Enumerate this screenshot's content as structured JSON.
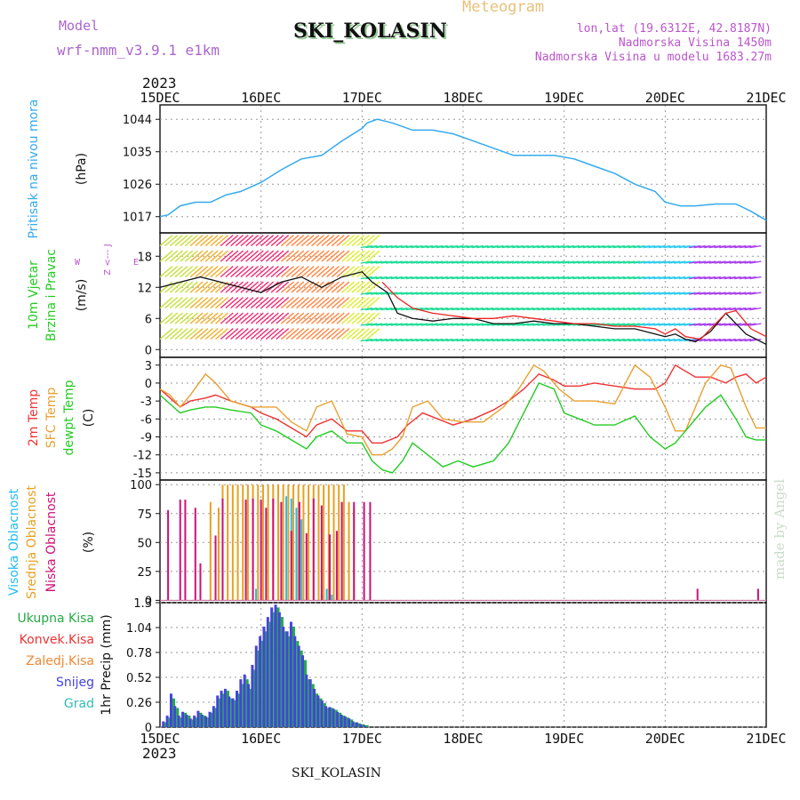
{
  "header": {
    "model_label": "Model",
    "model_name": "wrf-nmm_v3.9.1  e1km",
    "station": "SKI_KOLASIN",
    "product": "Meteogram",
    "coords": "lon,lat (19.6312E, 42.8187N)",
    "altitude": "Nadmorska Visina 1450m",
    "model_altitude": "Nadmorska Visina u modelu 1683.27m",
    "footer_station": "SKI_KOLASIN",
    "year": "2023",
    "watermark": "made by Angel"
  },
  "colors": {
    "pressure": "#33aaee",
    "t2m": "#ee3333",
    "tsfc": "#e8a030",
    "dewpoint": "#22cc22",
    "high_cloud": "#22bbee",
    "mid_cloud": "#e8a020",
    "low_cloud": "#cc1177",
    "total_precip": "#22aa44",
    "snow": "#4444dd",
    "grid": "#999999"
  },
  "chart_data": [
    {
      "type": "line",
      "panel": "pressure",
      "ylabel_lines": [
        "Pritisak na nivou mora",
        "(hPa)"
      ],
      "x_labels": [
        "15DEC",
        "16DEC",
        "17DEC",
        "18DEC",
        "19DEC",
        "20DEC",
        "21DEC"
      ],
      "yticks": [
        1017,
        1026,
        1035,
        1044
      ],
      "ylim": [
        1012.5,
        1048
      ],
      "series": [
        {
          "color_key": "pressure",
          "x": [
            0,
            0.08,
            0.2,
            0.35,
            0.5,
            0.65,
            0.8,
            1.0,
            1.2,
            1.4,
            1.6,
            1.8,
            2.0,
            2.05,
            2.15,
            2.3,
            2.5,
            2.7,
            2.9,
            3.1,
            3.3,
            3.5,
            3.7,
            3.9,
            4.1,
            4.3,
            4.5,
            4.7,
            4.9,
            5.0,
            5.15,
            5.3,
            5.5,
            5.7,
            5.85,
            6.0
          ],
          "values": [
            1017,
            1017.5,
            1020,
            1021,
            1021,
            1023,
            1024,
            1026.5,
            1030,
            1033,
            1034,
            1038,
            1041.5,
            1043,
            1044,
            1043,
            1041,
            1041,
            1040,
            1038,
            1036,
            1034,
            1034,
            1034,
            1033,
            1031,
            1029,
            1026,
            1024,
            1021,
            1020,
            1020,
            1020.5,
            1020.5,
            1018.5,
            1016
          ]
        }
      ]
    },
    {
      "type": "line",
      "panel": "wind",
      "ylabel_lines": [
        "10m Vjetar",
        "Brzina i Pravac",
        "(m/s)"
      ],
      "compass_label": "Z <--- J",
      "compass_w": "W",
      "compass_e": "E",
      "yticks": [
        0,
        6,
        12,
        18
      ],
      "ylim": [
        -1.5,
        22.5
      ],
      "series": [
        {
          "name": "speed",
          "color": "#111111",
          "x": [
            0,
            0.2,
            0.4,
            0.6,
            0.8,
            1.0,
            1.2,
            1.4,
            1.6,
            1.8,
            2.0,
            2.1,
            2.25,
            2.35,
            2.5,
            2.7,
            2.9,
            3.1,
            3.3,
            3.5,
            3.7,
            3.9,
            4.1,
            4.3,
            4.5,
            4.7,
            4.9,
            5.0,
            5.1,
            5.2,
            5.3,
            5.45,
            5.6,
            5.7,
            5.8,
            5.9,
            6.0
          ],
          "values": [
            12,
            13,
            14,
            13,
            12,
            11,
            13,
            14,
            12,
            14,
            15,
            13,
            11,
            7,
            6,
            5.5,
            6,
            6,
            5,
            5,
            5.5,
            5,
            5,
            4.5,
            4,
            4,
            3,
            2.5,
            3,
            2,
            1.5,
            3.5,
            7,
            5,
            3,
            2,
            1
          ]
        },
        {
          "name": "gust",
          "color": "#ee2222",
          "x": [
            2.2,
            2.35,
            2.5,
            2.7,
            2.9,
            3.1,
            3.3,
            3.5,
            3.7,
            3.9,
            4.1,
            4.3,
            4.5,
            4.7,
            4.9,
            5.0,
            5.1,
            5.2,
            5.35,
            5.5,
            5.6,
            5.7,
            5.85,
            6.0
          ],
          "values": [
            13,
            10,
            8,
            7,
            6.5,
            6,
            6,
            6.5,
            6,
            5.5,
            5,
            5,
            4.5,
            4.5,
            4,
            3,
            4,
            2.5,
            2,
            5,
            7,
            7.5,
            4,
            2.5
          ]
        }
      ]
    },
    {
      "type": "line",
      "panel": "temperature",
      "ylabel_lines": [
        "2m Temp",
        "SFC Temp",
        "dewpt Temp",
        "(C)"
      ],
      "yticks": [
        -15,
        -12,
        -9,
        -6,
        -3,
        0,
        3
      ],
      "ylim": [
        -16.2,
        4.3
      ],
      "series": [
        {
          "name": "2m Temp",
          "color_key": "t2m",
          "x": [
            0,
            0.1,
            0.2,
            0.3,
            0.45,
            0.55,
            0.7,
            0.9,
            1.0,
            1.15,
            1.3,
            1.45,
            1.55,
            1.7,
            1.85,
            2.0,
            2.1,
            2.2,
            2.35,
            2.45,
            2.6,
            2.75,
            2.9,
            3.1,
            3.3,
            3.45,
            3.6,
            3.75,
            3.9,
            4.0,
            4.15,
            4.3,
            4.5,
            4.7,
            4.9,
            5.0,
            5.1,
            5.3,
            5.45,
            5.6,
            5.7,
            5.8,
            5.9,
            6.0
          ],
          "values": [
            -1,
            -2.5,
            -4,
            -3,
            -2.5,
            -2,
            -3,
            -4,
            -5,
            -6,
            -7.5,
            -9,
            -7,
            -6,
            -8,
            -8,
            -10,
            -10,
            -9,
            -7,
            -5,
            -6,
            -7,
            -6,
            -4.5,
            -3,
            -1,
            1.5,
            0.5,
            -0.5,
            -0.5,
            0,
            -0.5,
            -1,
            -1,
            0,
            3,
            1,
            1,
            0,
            1,
            1.5,
            0,
            1
          ]
        },
        {
          "name": "SFC Temp",
          "color_key": "tsfc",
          "x": [
            0,
            0.1,
            0.2,
            0.3,
            0.45,
            0.55,
            0.7,
            0.9,
            1.0,
            1.15,
            1.3,
            1.45,
            1.55,
            1.7,
            1.85,
            2.0,
            2.1,
            2.2,
            2.3,
            2.4,
            2.5,
            2.65,
            2.8,
            3.0,
            3.2,
            3.4,
            3.55,
            3.7,
            3.8,
            3.95,
            4.1,
            4.3,
            4.5,
            4.7,
            4.85,
            5.0,
            5.1,
            5.2,
            5.4,
            5.55,
            5.65,
            5.8,
            5.9,
            6.0
          ],
          "values": [
            -1,
            -2,
            -4,
            -2,
            1.5,
            0,
            -3,
            -4,
            -4,
            -4,
            -6.5,
            -8,
            -4,
            -3,
            -8.5,
            -9,
            -12,
            -12,
            -11,
            -9,
            -4,
            -3,
            -6,
            -6.5,
            -6.5,
            -4,
            -1,
            3,
            2,
            -1,
            -3,
            -3,
            -3.5,
            3,
            1,
            -4,
            -8,
            -8,
            0,
            3,
            2.5,
            -4,
            -7.5,
            -7.5
          ]
        },
        {
          "name": "dewpt Temp",
          "color_key": "dewpoint",
          "x": [
            0,
            0.1,
            0.2,
            0.3,
            0.45,
            0.55,
            0.7,
            0.9,
            1.0,
            1.15,
            1.3,
            1.45,
            1.55,
            1.7,
            1.85,
            2.0,
            2.1,
            2.2,
            2.3,
            2.4,
            2.5,
            2.65,
            2.8,
            2.95,
            3.1,
            3.3,
            3.45,
            3.6,
            3.75,
            3.9,
            4.0,
            4.15,
            4.3,
            4.5,
            4.7,
            4.85,
            5.0,
            5.1,
            5.2,
            5.4,
            5.55,
            5.7,
            5.8,
            5.9,
            6.0
          ],
          "values": [
            -2,
            -3.5,
            -5,
            -4.5,
            -4,
            -4,
            -4.5,
            -5,
            -7,
            -8,
            -9.5,
            -11,
            -9,
            -8,
            -10,
            -10,
            -13,
            -14.5,
            -15,
            -13,
            -10,
            -12,
            -14,
            -13,
            -14,
            -13,
            -10,
            -5,
            0,
            -1,
            -5,
            -6,
            -7,
            -7,
            -5.5,
            -9,
            -11,
            -10,
            -8,
            -4,
            -2,
            -6,
            -9,
            -9.5,
            -9.5
          ]
        }
      ]
    },
    {
      "type": "bar",
      "panel": "cloud",
      "ylabel_lines": [
        "Visoka Oblacnost",
        "Srednja Oblacnost",
        "Niska Oblacnost",
        "(%)"
      ],
      "yticks": [
        0,
        25,
        50,
        75,
        100
      ],
      "ylim": [
        -2,
        104
      ],
      "series": [
        {
          "name": "Niska Oblacnost",
          "color_key": "low_cloud",
          "x": [
            0.08,
            0.2,
            0.25,
            0.35,
            0.4,
            0.55,
            0.62,
            0.85,
            0.92,
            1.0,
            1.05,
            1.12,
            1.2,
            1.3,
            1.38,
            1.45,
            1.52,
            1.6,
            1.68,
            1.75,
            1.8,
            1.92,
            2.02,
            2.08,
            5.32,
            5.92
          ],
          "values": [
            78,
            87,
            87,
            80,
            32,
            56,
            88,
            87,
            88,
            87,
            80,
            88,
            85,
            60,
            85,
            58,
            88,
            82,
            57,
            60,
            85,
            85,
            85,
            85,
            10,
            10
          ]
        },
        {
          "name": "Srednja Oblacnost",
          "color_key": "mid_cloud",
          "x": [
            0.5,
            0.58,
            0.62,
            0.67,
            0.72,
            0.77,
            0.82,
            0.87,
            0.92,
            0.97,
            1.02,
            1.07,
            1.12,
            1.17,
            1.22,
            1.27,
            1.32,
            1.37,
            1.42,
            1.47,
            1.52,
            1.57,
            1.62,
            1.67,
            1.72,
            1.77,
            1.82,
            1.87,
            1.92
          ],
          "values": [
            85,
            80,
            100,
            100,
            100,
            100,
            100,
            100,
            100,
            100,
            100,
            100,
            100,
            100,
            100,
            100,
            100,
            100,
            100,
            100,
            100,
            100,
            100,
            100,
            100,
            100,
            100,
            85,
            80
          ]
        },
        {
          "name": "Visoka Oblacnost",
          "color_key": "high_cloud",
          "x": [
            0.55,
            0.95,
            1.25,
            1.3,
            1.35,
            1.4,
            1.6,
            1.65,
            1.7
          ],
          "values": [
            3,
            10,
            90,
            88,
            80,
            70,
            5,
            10,
            5
          ]
        }
      ]
    },
    {
      "type": "bar",
      "panel": "precip",
      "ylabel_lines": [
        "1hr Precip (mm)"
      ],
      "legend": [
        "Ukupna Kisa",
        "Konvek.Kisa",
        "Zaledj.Kisa",
        "Snijeg",
        "Grad"
      ],
      "yticks": [
        "0",
        "0.26",
        "0.52",
        "0.78",
        "1.04",
        "1.3"
      ],
      "ytick_values": [
        0,
        0.26,
        0.52,
        0.78,
        1.04,
        1.3
      ],
      "ylim": [
        0,
        1.3
      ],
      "series": [
        {
          "name": "Ukupna Kisa",
          "color_key": "total_precip",
          "values": [
            0.05,
            0.1,
            0.3,
            0.2,
            0.1,
            0.15,
            0.12,
            0.08,
            0.1,
            0.15,
            0.12,
            0.1,
            0.15,
            0.2,
            0.3,
            0.35,
            0.38,
            0.3,
            0.28,
            0.35,
            0.45,
            0.5,
            0.4,
            0.6,
            0.8,
            0.9,
            1.0,
            1.1,
            1.2,
            1.25,
            1.15,
            1.0,
            0.95,
            1.05,
            0.9,
            0.8,
            0.7,
            0.5,
            0.45,
            0.35,
            0.3,
            0.25,
            0.2,
            0.2,
            0.18,
            0.15,
            0.12,
            0.1,
            0.08,
            0.05,
            0.04,
            0.03,
            0.02
          ]
        },
        {
          "name": "Snijeg",
          "color_key": "snow",
          "values": [
            0.06,
            0.12,
            0.35,
            0.22,
            0.12,
            0.16,
            0.13,
            0.09,
            0.12,
            0.17,
            0.13,
            0.11,
            0.16,
            0.22,
            0.33,
            0.38,
            0.4,
            0.32,
            0.3,
            0.38,
            0.5,
            0.55,
            0.45,
            0.65,
            0.85,
            0.95,
            1.05,
            1.15,
            1.25,
            1.28,
            1.2,
            1.05,
            1.0,
            1.1,
            0.95,
            0.85,
            0.75,
            0.55,
            0.5,
            0.4,
            0.33,
            0.28,
            0.22,
            0.21,
            0.19,
            0.16,
            0.13,
            0.11,
            0.09,
            0.06,
            0.05,
            0.03,
            0.02
          ]
        }
      ]
    }
  ]
}
